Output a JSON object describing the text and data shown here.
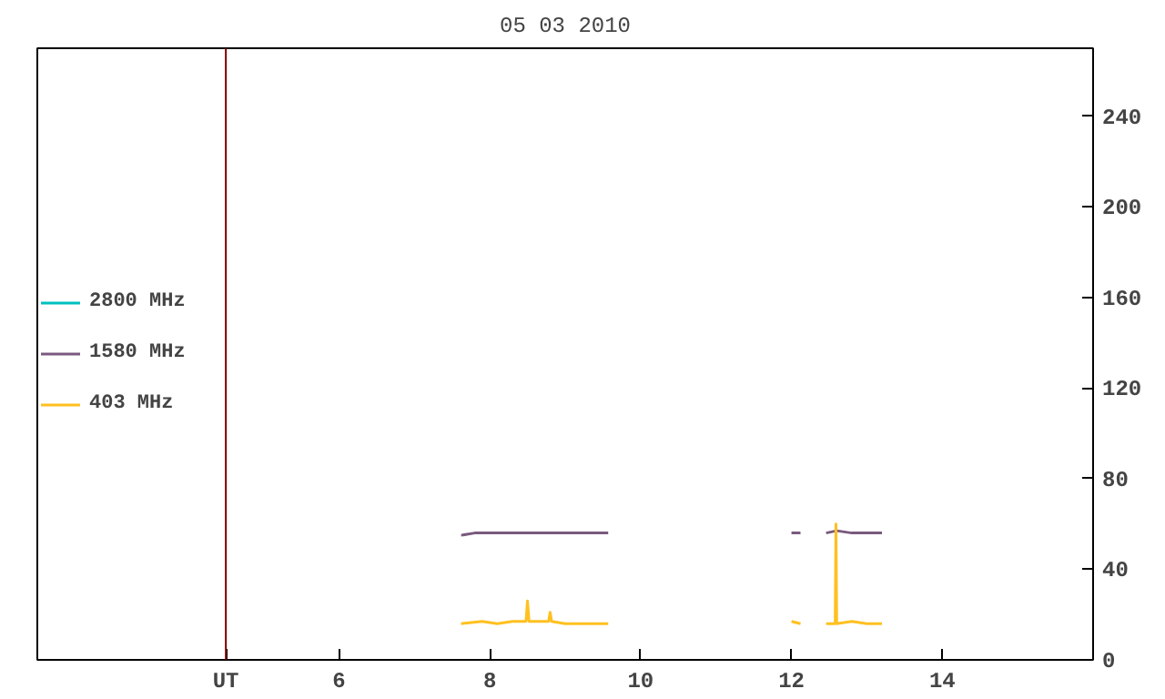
{
  "chart_data": {
    "type": "line",
    "title": "05 03 2010",
    "xlim": [
      2,
      16
    ],
    "ylim": [
      0,
      270
    ],
    "xticks": [
      {
        "value": 4.5,
        "label": "UT"
      },
      6,
      8,
      10,
      12,
      14
    ],
    "yticks": [
      0,
      40,
      80,
      120,
      160,
      200,
      240
    ],
    "grid": false,
    "legend": "left",
    "marker": "none",
    "line_style": "solid",
    "ref_lines": [
      {
        "axis": "x",
        "value": 4.5,
        "color": "#800000"
      }
    ],
    "series": [
      {
        "name": "2800 MHz",
        "color": "#00c0c0"
      },
      {
        "name": "1580 MHz",
        "color": "#7a5a7e",
        "x": [
          7.62,
          7.8,
          8.0,
          8.2,
          8.4,
          8.6,
          8.8,
          9.0,
          9.2,
          9.4,
          9.57,
          10.8,
          12.0,
          12.12,
          12.3,
          12.46,
          12.6,
          12.8,
          13.0,
          13.2
        ],
        "values": [
          55,
          56,
          56,
          56,
          56,
          56,
          56,
          56,
          56,
          56,
          56,
          null,
          56,
          56,
          null,
          56,
          57,
          56,
          56,
          56
        ]
      },
      {
        "name": "403 MHz",
        "color": "#ffc020",
        "x": [
          7.62,
          7.9,
          8.1,
          8.3,
          8.48,
          8.5,
          8.52,
          8.78,
          8.8,
          8.82,
          9.0,
          9.3,
          9.57,
          10.8,
          12.0,
          12.12,
          12.3,
          12.46,
          12.58,
          12.59,
          12.6,
          12.8,
          13.0,
          13.2
        ],
        "values": [
          16,
          17,
          16,
          17,
          17,
          26,
          17,
          17,
          21,
          17,
          16,
          16,
          16,
          null,
          17,
          16,
          null,
          16,
          16,
          60,
          16,
          17,
          16,
          16
        ]
      }
    ]
  }
}
